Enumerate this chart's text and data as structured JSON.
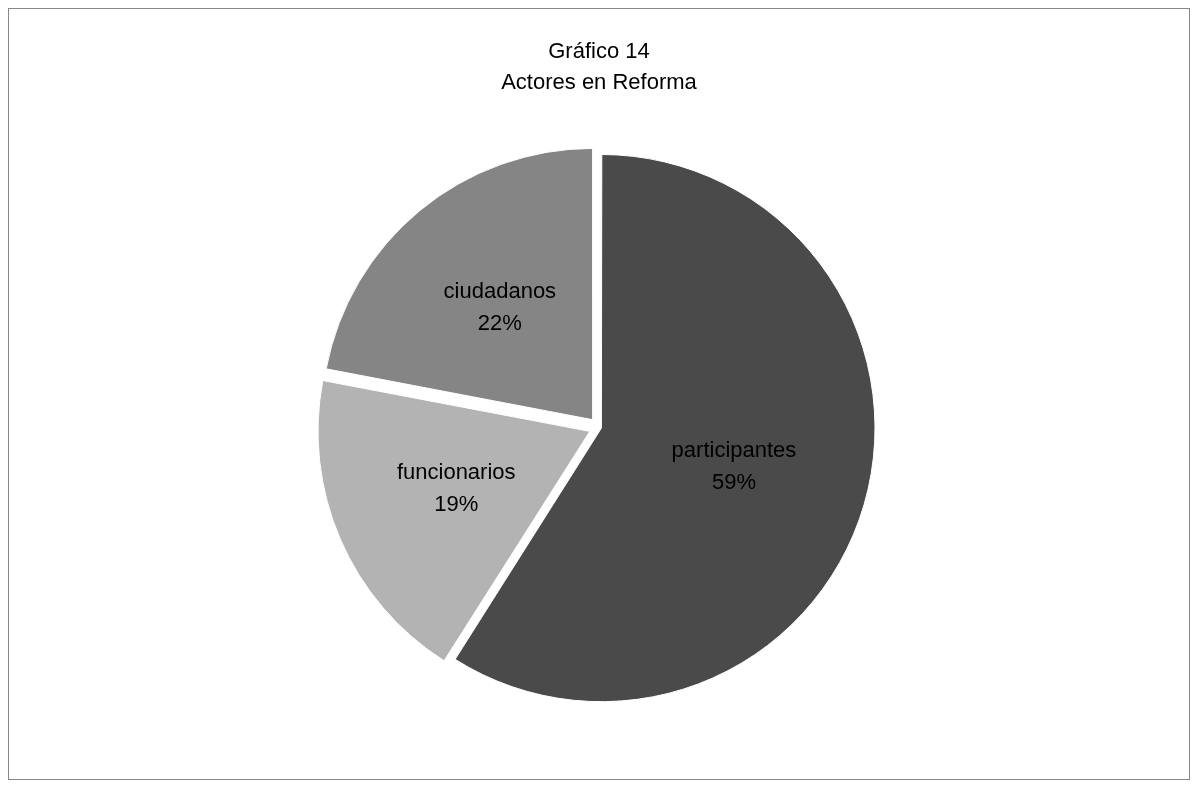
{
  "chart_data": {
    "type": "pie",
    "title": "Gráfico 14",
    "subtitle": "Actores en Reforma",
    "categories": [
      "participantes",
      "funcionarios",
      "ciudadanos"
    ],
    "values": [
      59,
      19,
      22
    ],
    "value_labels": [
      "59%",
      "19%",
      "22%"
    ],
    "colors": [
      "#4a4a4a",
      "#b3b3b3",
      "#858585"
    ],
    "legend": false
  }
}
